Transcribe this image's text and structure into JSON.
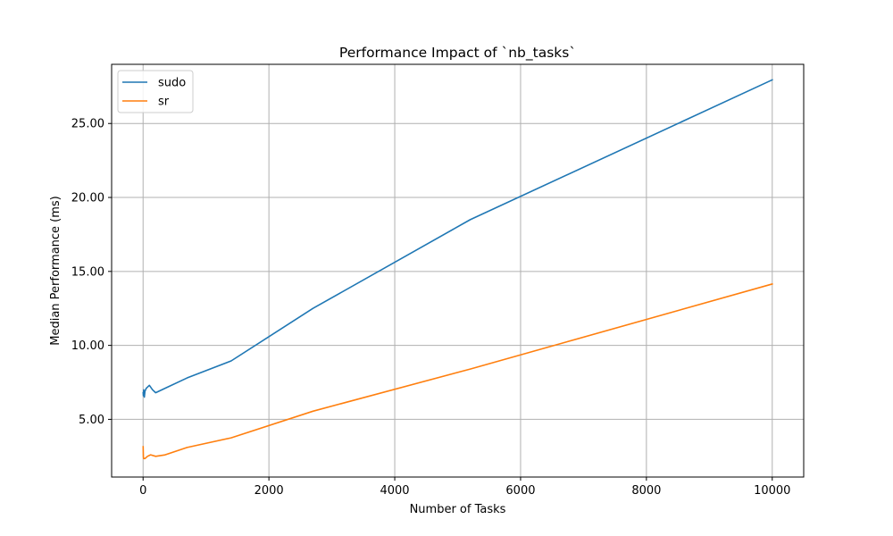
{
  "chart_data": {
    "type": "line",
    "title": "Performance Impact of `nb_tasks`",
    "xlabel": "Number of Tasks",
    "ylabel": "Median Performance (ms)",
    "xlim": [
      -500,
      10500
    ],
    "ylim": [
      1.1,
      29.0
    ],
    "xticks": [
      0,
      2000,
      4000,
      6000,
      8000,
      10000
    ],
    "xtick_labels": [
      "0",
      "2000",
      "4000",
      "6000",
      "8000",
      "10000"
    ],
    "yticks": [
      5,
      10,
      15,
      20,
      25
    ],
    "ytick_labels": [
      "5.00",
      "10.00",
      "15.00",
      "20.00",
      "25.00"
    ],
    "grid": true,
    "legend_position": "top-left",
    "series": [
      {
        "name": "sudo",
        "color": "#1f77b4",
        "points": [
          [
            1,
            6.8
          ],
          [
            5,
            6.6
          ],
          [
            10,
            7.0
          ],
          [
            20,
            6.5
          ],
          [
            30,
            6.9
          ],
          [
            50,
            7.1
          ],
          [
            100,
            7.3
          ],
          [
            150,
            7.0
          ],
          [
            200,
            6.8
          ],
          [
            350,
            7.1
          ],
          [
            700,
            7.8
          ],
          [
            1400,
            8.95
          ],
          [
            2700,
            12.5
          ],
          [
            5200,
            18.5
          ],
          [
            10000,
            27.95
          ]
        ]
      },
      {
        "name": "sr",
        "color": "#ff7f0e",
        "points": [
          [
            1,
            3.15
          ],
          [
            5,
            2.45
          ],
          [
            10,
            2.35
          ],
          [
            30,
            2.35
          ],
          [
            70,
            2.5
          ],
          [
            120,
            2.6
          ],
          [
            200,
            2.5
          ],
          [
            350,
            2.6
          ],
          [
            700,
            3.1
          ],
          [
            1400,
            3.75
          ],
          [
            2700,
            5.55
          ],
          [
            5200,
            8.4
          ],
          [
            10000,
            14.15
          ]
        ]
      }
    ]
  }
}
